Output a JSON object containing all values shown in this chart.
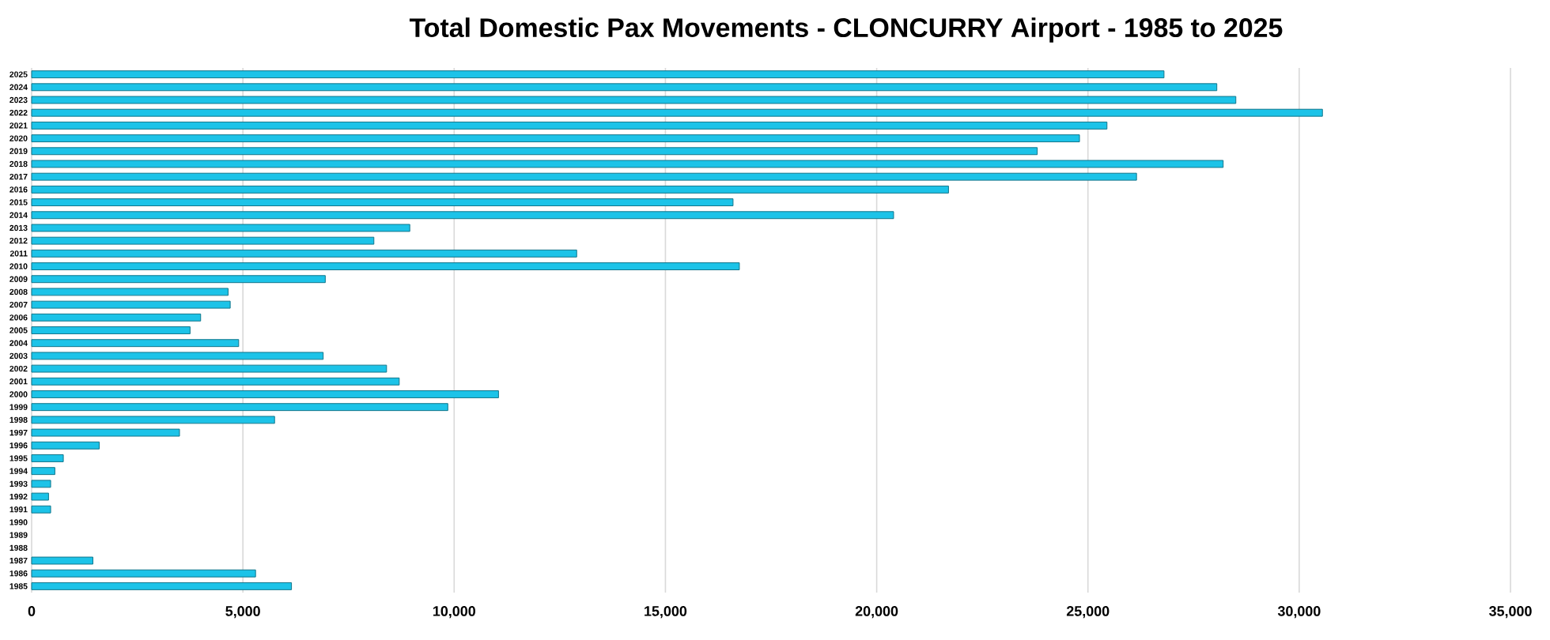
{
  "chart_data": {
    "type": "bar",
    "orientation": "horizontal",
    "title": "Total Domestic Pax Movements - CLONCURRY Airport - 1985 to 2025",
    "categories": [
      "2025",
      "2024",
      "2023",
      "2022",
      "2021",
      "2020",
      "2019",
      "2018",
      "2017",
      "2016",
      "2015",
      "2014",
      "2013",
      "2012",
      "2011",
      "2010",
      "2009",
      "2008",
      "2007",
      "2006",
      "2005",
      "2004",
      "2003",
      "2002",
      "2001",
      "2000",
      "1999",
      "1998",
      "1997",
      "1996",
      "1995",
      "1994",
      "1993",
      "1992",
      "1991",
      "1990",
      "1989",
      "1988",
      "1987",
      "1986",
      "1985"
    ],
    "values": [
      26800,
      28050,
      28500,
      30550,
      25450,
      24800,
      23800,
      28200,
      26150,
      21700,
      16600,
      20400,
      8950,
      8100,
      12900,
      16750,
      6950,
      4650,
      4700,
      4000,
      3750,
      4900,
      6900,
      8400,
      8700,
      11050,
      9850,
      5750,
      3500,
      1600,
      750,
      550,
      450,
      400,
      450,
      null,
      null,
      null,
      1450,
      5300,
      6150
    ],
    "color": "#1cc3e8",
    "xlim": [
      0,
      35000
    ],
    "xticks": [
      0,
      {
        "value": 5000,
        "label": "5,000"
      },
      {
        "value": 10000,
        "label": "10,000"
      },
      {
        "value": 15000,
        "label": "15,000"
      },
      {
        "value": 20000,
        "label": "20,000"
      },
      {
        "value": 25000,
        "label": "25,000"
      },
      {
        "value": 30000,
        "label": "30,000"
      },
      {
        "value": 35000,
        "label": "35,000"
      }
    ],
    "grid": "x"
  }
}
